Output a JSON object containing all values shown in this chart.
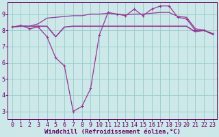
{
  "background_color": "#cce8e8",
  "grid_color": "#99cccc",
  "line_color": "#993399",
  "xlabel": "Windchill (Refroidissement éolien,°C)",
  "xlim": [
    -0.5,
    23.5
  ],
  "ylim": [
    2.5,
    9.75
  ],
  "yticks": [
    3,
    4,
    5,
    6,
    7,
    8,
    9
  ],
  "xticks": [
    0,
    1,
    2,
    3,
    4,
    5,
    6,
    7,
    8,
    9,
    10,
    11,
    12,
    13,
    14,
    15,
    16,
    17,
    18,
    19,
    20,
    21,
    22,
    23
  ],
  "series0_x": [
    0,
    1,
    2,
    3,
    4,
    5,
    6,
    7,
    8,
    9,
    10,
    11,
    12,
    13,
    14,
    15,
    16,
    17,
    18,
    19,
    20,
    21,
    22,
    23
  ],
  "series0_y": [
    8.2,
    8.3,
    8.1,
    8.2,
    7.6,
    6.3,
    5.8,
    3.0,
    3.3,
    4.4,
    7.7,
    9.1,
    9.0,
    8.9,
    9.3,
    8.9,
    9.3,
    9.5,
    9.5,
    8.8,
    8.7,
    8.0,
    8.0,
    7.8
  ],
  "series1_x": [
    0,
    1,
    2,
    3,
    4,
    5,
    6,
    7,
    8,
    9,
    10,
    11,
    12,
    13,
    14,
    15,
    16,
    17,
    18,
    19,
    20,
    21,
    22,
    23
  ],
  "series1_y": [
    8.2,
    8.25,
    8.25,
    8.25,
    8.25,
    7.6,
    8.2,
    8.25,
    8.25,
    8.25,
    8.25,
    8.25,
    8.25,
    8.25,
    8.25,
    8.25,
    8.25,
    8.25,
    8.25,
    8.25,
    8.25,
    7.9,
    8.0,
    7.75
  ],
  "series2_x": [
    0,
    1,
    2,
    3,
    4,
    5,
    6,
    7,
    8,
    9,
    10,
    11,
    12,
    13,
    14,
    15,
    16,
    17,
    18,
    19,
    20,
    21,
    22,
    23
  ],
  "series2_y": [
    8.2,
    8.25,
    8.25,
    8.4,
    8.75,
    8.8,
    8.85,
    8.9,
    8.9,
    9.0,
    9.0,
    9.05,
    9.0,
    8.95,
    9.0,
    9.0,
    9.05,
    9.1,
    9.1,
    8.85,
    8.8,
    8.1,
    8.0,
    7.75
  ],
  "font_family": "monospace",
  "xlabel_fontsize": 6.5,
  "tick_fontsize": 6.0,
  "linewidth": 0.9,
  "text_color": "#660066"
}
